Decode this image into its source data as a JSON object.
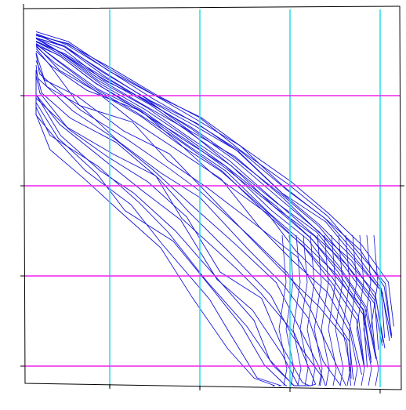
{
  "map": {
    "grid": true,
    "contours": true
  }
}
